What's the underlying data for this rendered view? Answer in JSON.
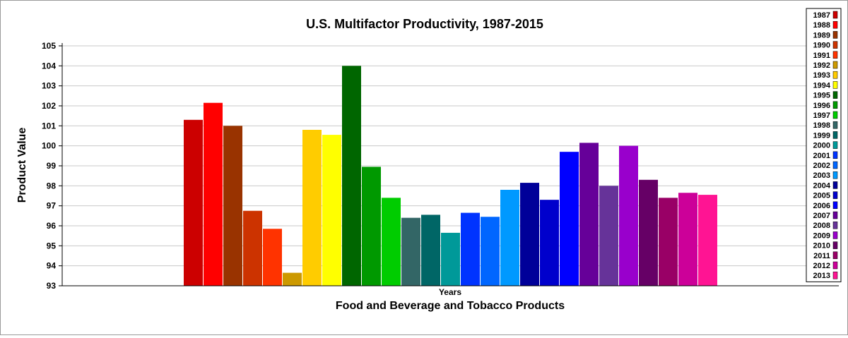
{
  "chart_data": {
    "type": "bar",
    "title": "U.S. Multifactor Productivity, 1987-2015",
    "xlabel": "Food and Beverage and Tobacco Products",
    "ylabel": "Product Value",
    "category_label": "Years",
    "ylim": [
      93,
      105
    ],
    "yticks": [
      "93",
      "94",
      "95",
      "96",
      "97",
      "98",
      "99",
      "100",
      "101",
      "102",
      "103",
      "104",
      "105"
    ],
    "grid": true,
    "legend_position": "right",
    "series": [
      {
        "name": "1987",
        "value": 101.3,
        "color": "#cc0000"
      },
      {
        "name": "1988",
        "value": 102.15,
        "color": "#ff0000"
      },
      {
        "name": "1989",
        "value": 101.0,
        "color": "#993300"
      },
      {
        "name": "1990",
        "value": 96.75,
        "color": "#cc3300"
      },
      {
        "name": "1991",
        "value": 95.85,
        "color": "#ff3300"
      },
      {
        "name": "1992",
        "value": 93.65,
        "color": "#cc9900"
      },
      {
        "name": "1993",
        "value": 100.8,
        "color": "#ffcc00"
      },
      {
        "name": "1994",
        "value": 100.55,
        "color": "#ffff00"
      },
      {
        "name": "1995",
        "value": 104.0,
        "color": "#006600"
      },
      {
        "name": "1996",
        "value": 98.95,
        "color": "#009900"
      },
      {
        "name": "1997",
        "value": 97.4,
        "color": "#00cc00"
      },
      {
        "name": "1998",
        "value": 96.4,
        "color": "#336666"
      },
      {
        "name": "1999",
        "value": 96.55,
        "color": "#006666"
      },
      {
        "name": "2000",
        "value": 95.65,
        "color": "#009999"
      },
      {
        "name": "2001",
        "value": 96.65,
        "color": "#0033ff"
      },
      {
        "name": "2002",
        "value": 96.45,
        "color": "#0066ff"
      },
      {
        "name": "2003",
        "value": 97.8,
        "color": "#0099ff"
      },
      {
        "name": "2004",
        "value": 98.15,
        "color": "#000099"
      },
      {
        "name": "2005",
        "value": 97.3,
        "color": "#0000cc"
      },
      {
        "name": "2006",
        "value": 99.7,
        "color": "#0000ff"
      },
      {
        "name": "2007",
        "value": 100.15,
        "color": "#660099"
      },
      {
        "name": "2008",
        "value": 98.0,
        "color": "#663399"
      },
      {
        "name": "2009",
        "value": 100.0,
        "color": "#9900cc"
      },
      {
        "name": "2010",
        "value": 98.3,
        "color": "#660066"
      },
      {
        "name": "2011",
        "value": 97.4,
        "color": "#990066"
      },
      {
        "name": "2012",
        "value": 97.65,
        "color": "#cc0099"
      },
      {
        "name": "2013",
        "value": 97.55,
        "color": "#ff1493"
      }
    ]
  }
}
